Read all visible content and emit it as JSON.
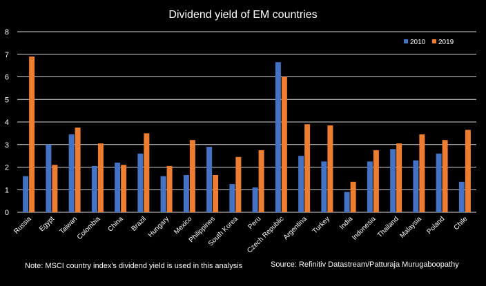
{
  "chart_data": {
    "type": "bar",
    "title": "Dividend yield of EM countries",
    "xlabel": "",
    "ylabel": "",
    "ylim": [
      0,
      8
    ],
    "yticks": [
      0,
      1,
      2,
      3,
      4,
      5,
      6,
      7,
      8
    ],
    "grid": true,
    "legend_position": "top-right",
    "categories": [
      "Russia",
      "Egypt",
      "Taiwan",
      "Colombia",
      "China",
      "Brazil",
      "Hungary",
      "Mexico",
      "Philippines",
      "South Korea",
      "Peru",
      "Czech Republic",
      "Argentina",
      "Turkey",
      "India",
      "Indonesia",
      "Thailand",
      "Malaysia",
      "Poland",
      "Chile"
    ],
    "series": [
      {
        "name": "2010",
        "color": "#4472C4",
        "values": [
          1.6,
          3.0,
          3.45,
          2.05,
          2.2,
          2.6,
          1.6,
          1.65,
          2.9,
          1.25,
          1.1,
          6.65,
          2.5,
          2.25,
          0.9,
          2.25,
          2.8,
          2.3,
          2.6,
          1.35
        ]
      },
      {
        "name": "2019",
        "color": "#ED7D31",
        "values": [
          6.9,
          2.1,
          3.75,
          3.05,
          2.1,
          3.5,
          2.05,
          3.2,
          1.65,
          2.45,
          2.75,
          6.0,
          3.9,
          3.85,
          1.35,
          2.75,
          3.05,
          3.45,
          3.2,
          3.65
        ]
      }
    ]
  },
  "footer": {
    "note": "Note:  MSCI country index's dividend yield is used in this analysis",
    "source": "Source: Refinitiv Datastream/Patturaja Murugaboopathy"
  }
}
